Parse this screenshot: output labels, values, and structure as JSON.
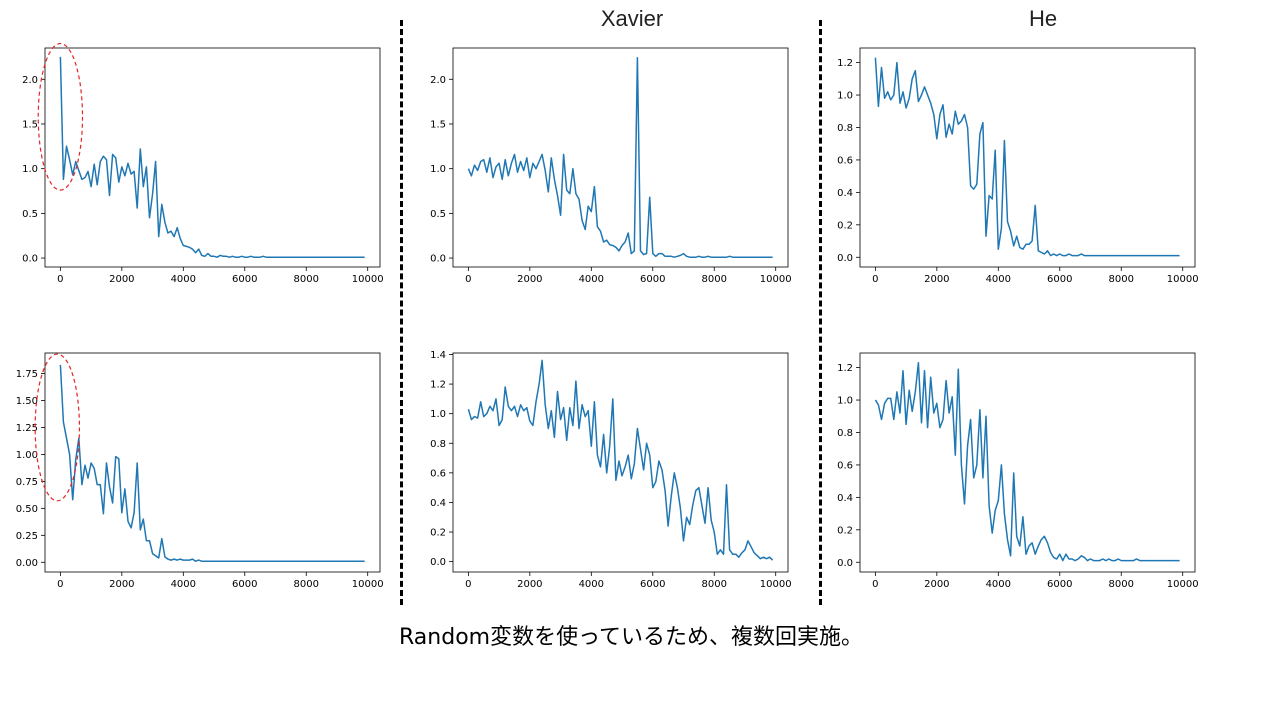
{
  "column_titles": {
    "xavier": "Xavier",
    "he": "He"
  },
  "caption": "Random変数を使っているため、複数回実施。",
  "colors": {
    "series": "#1f77b4",
    "highlight": "#e32626"
  },
  "highlight_icon": "dashed-ellipse",
  "chart_data": [
    {
      "type": "line",
      "xlim": [
        -500,
        10400
      ],
      "ylim": [
        -0.1,
        2.35
      ],
      "xticks": [
        0,
        2000,
        4000,
        6000,
        8000,
        10000
      ],
      "xtick_labels": [
        "0",
        "2000",
        "4000",
        "6000",
        "8000",
        "10000"
      ],
      "yticks": [
        0,
        0.5,
        1,
        1.5,
        2
      ],
      "ytick_labels": [
        "0.0",
        "0.5",
        "1.0",
        "1.5",
        "2.0"
      ],
      "series": [
        {
          "x_start": 0,
          "x_step": 100,
          "values": [
            2.25,
            0.88,
            1.25,
            1.1,
            0.93,
            1.08,
            0.98,
            0.88,
            0.9,
            0.97,
            0.8,
            1.05,
            0.82,
            1.08,
            1.14,
            1.1,
            0.7,
            1.16,
            1.12,
            0.85,
            1.02,
            0.92,
            1.06,
            0.94,
            0.97,
            0.56,
            1.22,
            0.8,
            1.02,
            0.45,
            0.72,
            1.08,
            0.24,
            0.6,
            0.4,
            0.28,
            0.3,
            0.24,
            0.34,
            0.22,
            0.14,
            0.13,
            0.12,
            0.1,
            0.06,
            0.1,
            0.03,
            0.02,
            0.05,
            0.02,
            0.02,
            0.01,
            0.03,
            0.02,
            0.02,
            0.01,
            0.02,
            0.01,
            0.01,
            0.02,
            0.01,
            0.01,
            0.02,
            0.01,
            0.01,
            0.01,
            0.02,
            0.01,
            0.01,
            0.01,
            0.01,
            0.01,
            0.01,
            0.01,
            0.01,
            0.01,
            0.01,
            0.01,
            0.01,
            0.01,
            0.01,
            0.01,
            0.01,
            0.01,
            0.01,
            0.01,
            0.01,
            0.01,
            0.01,
            0.01,
            0.01,
            0.01,
            0.01,
            0.01,
            0.01,
            0.01,
            0.01,
            0.01,
            0.01,
            0.01
          ]
        }
      ],
      "highlight": {
        "cx": 0,
        "cy": 1.58,
        "rx": 720,
        "ry": 0.82
      }
    },
    {
      "type": "line",
      "xlim": [
        -500,
        10400
      ],
      "ylim": [
        -0.1,
        2.35
      ],
      "xticks": [
        0,
        2000,
        4000,
        6000,
        8000,
        10000
      ],
      "xtick_labels": [
        "0",
        "2000",
        "4000",
        "6000",
        "8000",
        "10000"
      ],
      "yticks": [
        0,
        0.5,
        1,
        1.5,
        2
      ],
      "ytick_labels": [
        "0.0",
        "0.5",
        "1.0",
        "1.5",
        "2.0"
      ],
      "series": [
        {
          "x_start": 0,
          "x_step": 100,
          "values": [
            1.0,
            0.92,
            1.04,
            0.98,
            1.08,
            1.1,
            0.96,
            1.12,
            0.9,
            1.02,
            1.06,
            0.88,
            1.1,
            0.92,
            1.06,
            1.16,
            0.96,
            1.08,
            0.98,
            1.12,
            0.9,
            1.06,
            1.0,
            1.08,
            1.16,
            0.98,
            0.74,
            1.12,
            0.88,
            0.7,
            0.48,
            1.16,
            0.76,
            0.72,
            1.0,
            0.72,
            0.66,
            0.42,
            0.32,
            0.58,
            0.52,
            0.8,
            0.35,
            0.3,
            0.18,
            0.2,
            0.15,
            0.14,
            0.12,
            0.08,
            0.14,
            0.18,
            0.28,
            0.05,
            0.08,
            2.24,
            0.08,
            0.04,
            0.05,
            0.68,
            0.05,
            0.02,
            0.05,
            0.05,
            0.02,
            0.02,
            0.02,
            0.01,
            0.02,
            0.03,
            0.05,
            0.02,
            0.01,
            0.01,
            0.01,
            0.02,
            0.01,
            0.01,
            0.02,
            0.01,
            0.01,
            0.01,
            0.01,
            0.01,
            0.01,
            0.02,
            0.01,
            0.01,
            0.01,
            0.01,
            0.01,
            0.01,
            0.01,
            0.01,
            0.01,
            0.01,
            0.01,
            0.01,
            0.01,
            0.01
          ]
        }
      ]
    },
    {
      "type": "line",
      "xlim": [
        -500,
        10400
      ],
      "ylim": [
        -0.06,
        1.29
      ],
      "xticks": [
        0,
        2000,
        4000,
        6000,
        8000,
        10000
      ],
      "xtick_labels": [
        "0",
        "2000",
        "4000",
        "6000",
        "8000",
        "10000"
      ],
      "yticks": [
        0,
        0.2,
        0.4,
        0.6,
        0.8,
        1,
        1.2
      ],
      "ytick_labels": [
        "0.0",
        "0.2",
        "0.4",
        "0.6",
        "0.8",
        "1.0",
        "1.2"
      ],
      "series": [
        {
          "x_start": 0,
          "x_step": 100,
          "values": [
            1.23,
            0.93,
            1.17,
            0.98,
            1.02,
            0.97,
            1.0,
            1.2,
            0.95,
            1.02,
            0.92,
            0.98,
            1.1,
            1.15,
            0.96,
            1.0,
            1.05,
            1.0,
            0.95,
            0.88,
            0.73,
            0.88,
            0.94,
            0.74,
            0.82,
            0.76,
            0.9,
            0.82,
            0.84,
            0.88,
            0.8,
            0.44,
            0.42,
            0.45,
            0.76,
            0.83,
            0.13,
            0.38,
            0.36,
            0.66,
            0.05,
            0.18,
            0.72,
            0.22,
            0.16,
            0.07,
            0.13,
            0.06,
            0.05,
            0.08,
            0.08,
            0.1,
            0.32,
            0.04,
            0.03,
            0.02,
            0.04,
            0.01,
            0.02,
            0.01,
            0.02,
            0.01,
            0.01,
            0.02,
            0.01,
            0.01,
            0.01,
            0.02,
            0.01,
            0.01,
            0.01,
            0.01,
            0.01,
            0.01,
            0.01,
            0.01,
            0.01,
            0.01,
            0.01,
            0.01,
            0.01,
            0.01,
            0.01,
            0.01,
            0.01,
            0.01,
            0.01,
            0.01,
            0.01,
            0.01,
            0.01,
            0.01,
            0.01,
            0.01,
            0.01,
            0.01,
            0.01,
            0.01,
            0.01,
            0.01
          ]
        }
      ]
    },
    {
      "type": "line",
      "xlim": [
        -500,
        10400
      ],
      "ylim": [
        -0.09,
        1.94
      ],
      "xticks": [
        0,
        2000,
        4000,
        6000,
        8000,
        10000
      ],
      "xtick_labels": [
        "0",
        "2000",
        "4000",
        "6000",
        "8000",
        "10000"
      ],
      "yticks": [
        0,
        0.25,
        0.5,
        0.75,
        1,
        1.25,
        1.5,
        1.75
      ],
      "ytick_labels": [
        "0.00",
        "0.25",
        "0.50",
        "0.75",
        "1.00",
        "1.25",
        "1.50",
        "1.75"
      ],
      "series": [
        {
          "x_start": 0,
          "x_step": 100,
          "values": [
            1.83,
            1.3,
            1.15,
            1.0,
            0.58,
            0.95,
            1.15,
            0.72,
            0.9,
            0.78,
            0.92,
            0.87,
            0.72,
            0.72,
            0.45,
            0.92,
            0.7,
            0.55,
            0.98,
            0.96,
            0.46,
            0.68,
            0.38,
            0.32,
            0.46,
            0.92,
            0.3,
            0.4,
            0.2,
            0.2,
            0.08,
            0.06,
            0.04,
            0.22,
            0.05,
            0.03,
            0.02,
            0.03,
            0.02,
            0.03,
            0.02,
            0.02,
            0.02,
            0.03,
            0.01,
            0.02,
            0.01,
            0.01,
            0.01,
            0.01,
            0.01,
            0.01,
            0.01,
            0.01,
            0.01,
            0.01,
            0.01,
            0.01,
            0.01,
            0.01,
            0.01,
            0.01,
            0.01,
            0.01,
            0.01,
            0.01,
            0.01,
            0.01,
            0.01,
            0.01,
            0.01,
            0.01,
            0.01,
            0.01,
            0.01,
            0.01,
            0.01,
            0.01,
            0.01,
            0.01,
            0.01,
            0.01,
            0.01,
            0.01,
            0.01,
            0.01,
            0.01,
            0.01,
            0.01,
            0.01,
            0.01,
            0.01,
            0.01,
            0.01,
            0.01,
            0.01,
            0.01,
            0.01,
            0.01,
            0.01
          ]
        }
      ],
      "highlight": {
        "cx": -100,
        "cy": 1.25,
        "rx": 720,
        "ry": 0.68
      }
    },
    {
      "type": "line",
      "xlim": [
        -500,
        10400
      ],
      "ylim": [
        -0.07,
        1.41
      ],
      "xticks": [
        0,
        2000,
        4000,
        6000,
        8000,
        10000
      ],
      "xtick_labels": [
        "0",
        "2000",
        "4000",
        "6000",
        "8000",
        "10000"
      ],
      "yticks": [
        0,
        0.2,
        0.4,
        0.6,
        0.8,
        1,
        1.2,
        1.4
      ],
      "ytick_labels": [
        "0.0",
        "0.2",
        "0.4",
        "0.6",
        "0.8",
        "1.0",
        "1.2",
        "1.4"
      ],
      "series": [
        {
          "x_start": 0,
          "x_step": 100,
          "values": [
            1.03,
            0.96,
            0.98,
            0.97,
            1.08,
            0.98,
            1.0,
            1.05,
            1.02,
            1.1,
            0.92,
            0.96,
            1.18,
            1.05,
            1.02,
            1.05,
            0.98,
            1.06,
            1.02,
            1.04,
            0.95,
            0.92,
            1.08,
            1.2,
            1.36,
            1.06,
            0.9,
            1.02,
            0.84,
            1.15,
            0.96,
            1.04,
            0.82,
            1.04,
            0.92,
            1.22,
            0.9,
            1.06,
            0.98,
            1.02,
            0.78,
            1.08,
            0.72,
            0.64,
            0.86,
            0.6,
            0.78,
            1.1,
            0.55,
            0.68,
            0.58,
            0.64,
            0.72,
            0.56,
            0.66,
            0.9,
            0.76,
            0.62,
            0.8,
            0.72,
            0.5,
            0.54,
            0.68,
            0.62,
            0.48,
            0.24,
            0.44,
            0.6,
            0.5,
            0.36,
            0.14,
            0.3,
            0.25,
            0.38,
            0.48,
            0.5,
            0.38,
            0.26,
            0.5,
            0.28,
            0.2,
            0.05,
            0.08,
            0.05,
            0.52,
            0.08,
            0.05,
            0.05,
            0.03,
            0.06,
            0.08,
            0.14,
            0.1,
            0.06,
            0.04,
            0.02,
            0.03,
            0.02,
            0.03,
            0.01
          ]
        }
      ]
    },
    {
      "type": "line",
      "xlim": [
        -500,
        10400
      ],
      "ylim": [
        -0.06,
        1.29
      ],
      "xticks": [
        0,
        2000,
        4000,
        6000,
        8000,
        10000
      ],
      "xtick_labels": [
        "0",
        "2000",
        "4000",
        "6000",
        "8000",
        "10000"
      ],
      "yticks": [
        0,
        0.2,
        0.4,
        0.6,
        0.8,
        1,
        1.2
      ],
      "ytick_labels": [
        "0.0",
        "0.2",
        "0.4",
        "0.6",
        "0.8",
        "1.0",
        "1.2"
      ],
      "series": [
        {
          "x_start": 0,
          "x_step": 100,
          "values": [
            1.0,
            0.97,
            0.88,
            0.98,
            1.01,
            1.01,
            0.88,
            1.05,
            0.92,
            1.18,
            0.85,
            1.06,
            0.93,
            1.05,
            1.23,
            0.86,
            1.18,
            0.83,
            1.14,
            0.92,
            0.98,
            0.83,
            0.88,
            1.12,
            0.92,
            1.02,
            0.66,
            1.19,
            0.6,
            0.36,
            0.72,
            0.88,
            0.52,
            0.6,
            0.94,
            0.52,
            0.9,
            0.35,
            0.18,
            0.32,
            0.38,
            0.6,
            0.3,
            0.14,
            0.04,
            0.55,
            0.16,
            0.1,
            0.28,
            0.05,
            0.1,
            0.12,
            0.05,
            0.1,
            0.14,
            0.16,
            0.12,
            0.06,
            0.03,
            0.02,
            0.05,
            0.01,
            0.05,
            0.02,
            0.02,
            0.01,
            0.02,
            0.04,
            0.03,
            0.01,
            0.02,
            0.01,
            0.01,
            0.01,
            0.02,
            0.01,
            0.02,
            0.01,
            0.01,
            0.02,
            0.01,
            0.01,
            0.01,
            0.01,
            0.01,
            0.02,
            0.01,
            0.01,
            0.01,
            0.01,
            0.01,
            0.01,
            0.01,
            0.01,
            0.01,
            0.01,
            0.01,
            0.01,
            0.01,
            0.01
          ]
        }
      ]
    }
  ]
}
